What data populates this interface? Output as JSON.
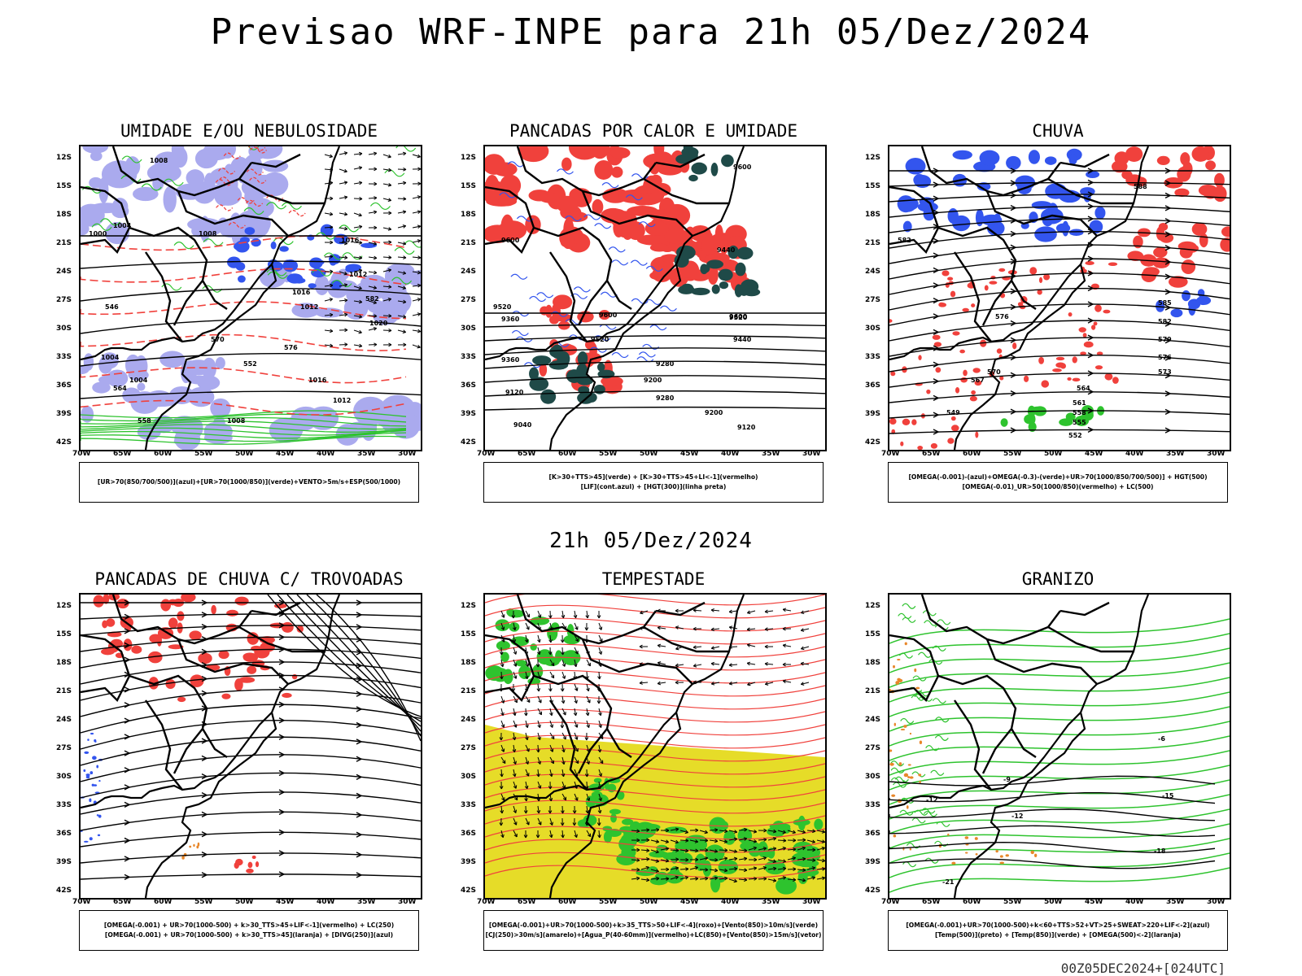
{
  "main_title": "Previsao WRF-INPE  para 21h 05/Dez/2024",
  "mid_title": "21h 05/Dez/2024",
  "footer": "00Z05DEC2024+[024UTC]",
  "lat_labels": [
    "12S",
    "15S",
    "18S",
    "21S",
    "24S",
    "27S",
    "30S",
    "33S",
    "36S",
    "39S",
    "42S"
  ],
  "lon_labels": [
    "70W",
    "65W",
    "60W",
    "55W",
    "50W",
    "45W",
    "40W",
    "35W",
    "30W"
  ],
  "colors": {
    "red": "#f0413c",
    "green": "#2ec32e",
    "blue": "#3355ee",
    "lavender": "#aaaaee",
    "yellow": "#e6dc28",
    "teal": "#1f4a48",
    "orange": "#e8872a"
  },
  "panels": [
    {
      "title": "UMIDADE E/OU NEBULOSIDADE",
      "legend": [
        "[UR>70(850/700/500)](azul)+[UR>70(1000/850)](verde)+VENTO>5m/s+ESP(500/1000)"
      ],
      "contour_labels": [
        "1008",
        "1004",
        "1008",
        "1000",
        "1016",
        "1012",
        "1016",
        "1012",
        "1004",
        "1004",
        "1008",
        "1016",
        "1012",
        "1020",
        "582",
        "576",
        "570",
        "564",
        "558",
        "552",
        "546"
      ]
    },
    {
      "title": "PANCADAS POR CALOR E UMIDADE",
      "legend": [
        "[K>30+TTS>45](verde) + [K>30+TTS>45+LI<-1](vermelho)",
        "[LIF](cont.azul) + [HGT(300)](linha preta)"
      ],
      "contour_labels": [
        "9600",
        "9600",
        "9440",
        "9520",
        "9360",
        "9600",
        "9520",
        "9440",
        "9280",
        "9360",
        "9200",
        "9120",
        "9040",
        "9200",
        "9120",
        "9280",
        "9520",
        "9600"
      ]
    },
    {
      "title": "CHUVA",
      "legend": [
        "[OMEGA(-0.001)-(azul)+OMEGA(-0.3)-(verde)+UR>70(1000/850/700/500)] + HGT(500)",
        "[OMEGA(-0.01)_UR>50(1000/850)(vermelho) + LC(500)"
      ],
      "contour_labels": [
        "588",
        "582",
        "576",
        "585",
        "582",
        "579",
        "576",
        "573",
        "570",
        "567",
        "564",
        "561",
        "558",
        "555",
        "552",
        "549"
      ]
    },
    {
      "title": "PANCADAS DE CHUVA C/ TROVOADAS",
      "legend": [
        "[OMEGA(-0.001) + UR>70(1000-500) + k>30_TTS>45+LIF<-1](vermelho) + LC(250)",
        "[OMEGA(-0.001) + UR>70(1000-500) + k>30_TTS>45](laranja) + [DIVG(250)](azul)"
      ],
      "contour_labels": []
    },
    {
      "title": "TEMPESTADE",
      "legend": [
        "[OMEGA(-0.001)+UR>70(1000-500)+k>35_TTS>50+LIF<-4](roxo)+[Vento(850)>10m/s](verde)",
        "[CJ(250)>30m/s](amarelo)+[Agua_P(40-60mm)](vermelho)+LC(850)+[Vento(850)>15m/s](vetor)"
      ],
      "contour_labels": []
    },
    {
      "title": "GRANIZO",
      "legend": [
        "[OMEGA(-0.001)+UR>70(1000-500)+k<60+TTS>52+VT>25+SWEAT>220+LIF<-2](azul)",
        "[Temp(500)](preto) + [Temp(850)](verde) + [OMEGA(500)<-2](laranja)"
      ],
      "contour_labels": [
        "-12",
        "-12",
        "-15",
        "-18",
        "-21",
        "-9",
        "-6"
      ]
    }
  ]
}
